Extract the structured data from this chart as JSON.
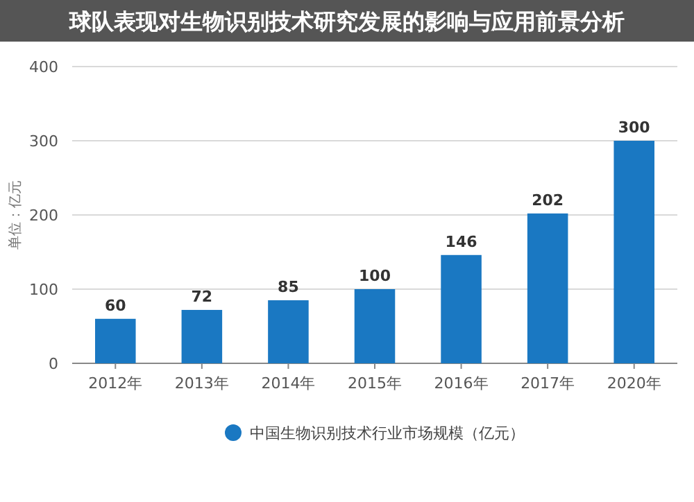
{
  "chart_data": {
    "type": "bar",
    "title": "球队表现对生物识别技术研究发展的影响与应用前景分析",
    "ylabel": "单位：亿元",
    "categories": [
      "2012年",
      "2013年",
      "2014年",
      "2015年",
      "2016年",
      "2017年",
      "2020年"
    ],
    "series": [
      {
        "name": "中国生物识别技术行业市场规模（亿元）",
        "color": "#1a78c2",
        "values": [
          60,
          72,
          85,
          100,
          146,
          202,
          300
        ]
      }
    ],
    "ylim": [
      0,
      400
    ],
    "yticks": [
      0,
      100,
      200,
      300,
      400
    ],
    "grid": "y",
    "data_labels": true,
    "legend": "bottom"
  }
}
